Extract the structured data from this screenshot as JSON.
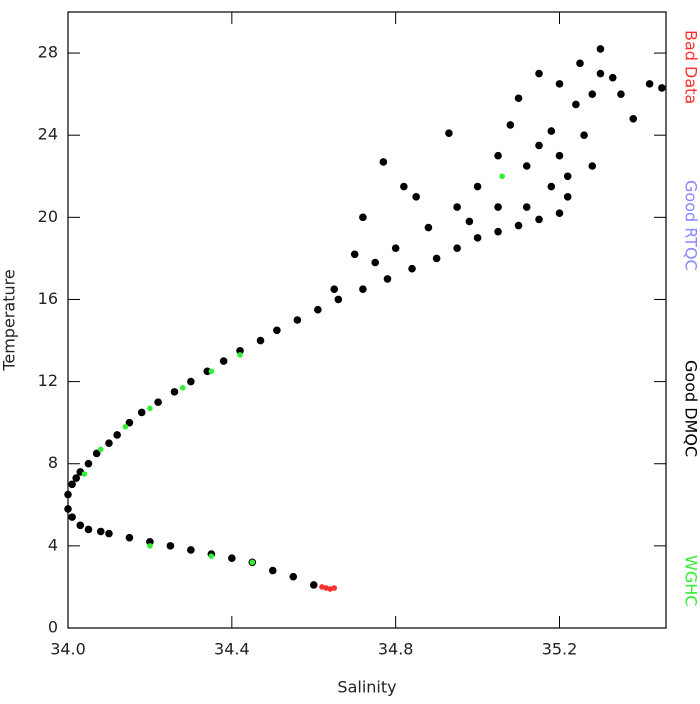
{
  "chart_data": {
    "type": "scatter",
    "xlabel": "Salinity",
    "ylabel": "Temperature",
    "xlim": [
      34.0,
      35.46
    ],
    "ylim": [
      0,
      30
    ],
    "xticks": [
      {
        "value": 34.0,
        "label": "34.0"
      },
      34.4,
      34.8,
      35.2
    ],
    "yticks": [
      0,
      4,
      8,
      12,
      16,
      20,
      24,
      28
    ],
    "series": [
      {
        "name": "Bad Data",
        "color": "#ff3030",
        "x": [
          34.62,
          34.63,
          34.64,
          34.65
        ],
        "y": [
          2.0,
          1.95,
          1.9,
          1.95
        ]
      },
      {
        "name": "Good RTQC",
        "color": "#8888ff",
        "x": [],
        "y": []
      },
      {
        "name": "Good DMQC",
        "color": "#000000",
        "x": [
          34.6,
          34.55,
          34.5,
          34.45,
          34.4,
          34.35,
          34.3,
          34.25,
          34.2,
          34.15,
          34.1,
          34.08,
          34.05,
          34.03,
          34.01,
          34.0,
          34.0,
          34.01,
          34.02,
          34.03,
          34.05,
          34.07,
          34.1,
          34.12,
          34.15,
          34.18,
          34.22,
          34.26,
          34.3,
          34.34,
          34.38,
          34.42,
          34.47,
          34.51,
          34.56,
          34.61,
          34.66,
          34.72,
          34.78,
          34.84,
          34.9,
          34.95,
          35.0,
          35.05,
          35.1,
          35.15,
          35.2,
          35.22,
          35.18,
          35.12,
          34.77,
          34.82,
          34.93,
          35.05,
          35.1,
          35.15,
          35.2,
          35.25,
          35.3,
          35.28,
          35.33,
          35.42,
          35.45,
          35.38,
          35.18,
          35.22,
          35.12,
          34.95,
          34.88,
          34.8,
          34.72,
          34.85,
          35.0,
          35.05,
          35.28,
          35.15,
          35.08,
          34.65,
          34.98,
          35.24,
          35.26,
          35.3,
          35.35,
          35.2,
          34.75,
          34.7
        ],
        "y": [
          2.1,
          2.5,
          2.8,
          3.2,
          3.4,
          3.6,
          3.8,
          4.0,
          4.2,
          4.4,
          4.6,
          4.7,
          4.8,
          5.0,
          5.4,
          5.8,
          6.5,
          7.0,
          7.3,
          7.6,
          8.0,
          8.5,
          9.0,
          9.4,
          10.0,
          10.5,
          11.0,
          11.5,
          12.0,
          12.5,
          13.0,
          13.5,
          14.0,
          14.5,
          15.0,
          15.5,
          16.0,
          16.5,
          17.0,
          17.5,
          18.0,
          18.5,
          19.0,
          19.3,
          19.6,
          19.9,
          20.2,
          21.0,
          21.5,
          20.5,
          22.7,
          21.5,
          24.1,
          23.0,
          25.8,
          27.0,
          26.5,
          27.5,
          28.2,
          26.0,
          26.8,
          26.5,
          26.3,
          24.8,
          24.2,
          22.0,
          22.5,
          20.5,
          19.5,
          18.5,
          20.0,
          21.0,
          21.5,
          20.5,
          22.5,
          23.5,
          24.5,
          16.5,
          19.8,
          25.5,
          24.0,
          27.0,
          26.0,
          23.0,
          17.8,
          18.2
        ]
      },
      {
        "name": "WGHC",
        "color": "#33ee33",
        "x": [
          34.04,
          34.08,
          34.14,
          34.2,
          34.28,
          34.35,
          34.42,
          34.2,
          34.35,
          34.45,
          35.06
        ],
        "y": [
          7.5,
          8.7,
          9.8,
          10.7,
          11.7,
          12.5,
          13.3,
          4.0,
          3.5,
          3.2,
          22.0
        ]
      }
    ]
  }
}
